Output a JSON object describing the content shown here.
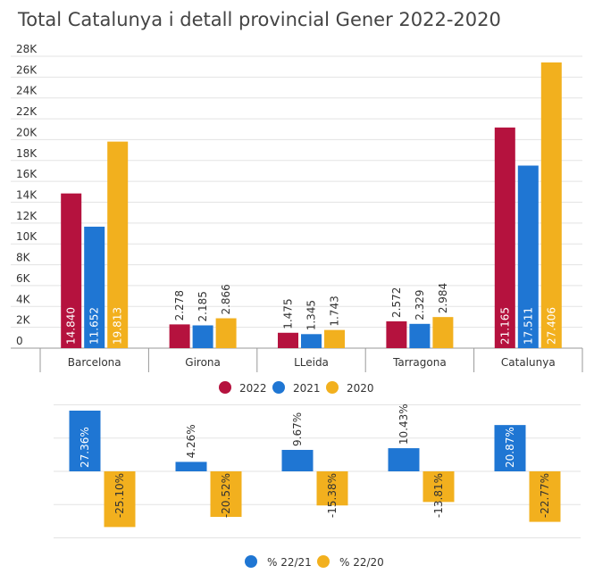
{
  "chart_data": [
    {
      "type": "bar",
      "title": "Total Catalunya i detall provincial Gener 2022-2020",
      "categories": [
        "Barcelona",
        "Girona",
        "LLeida",
        "Tarragona",
        "Catalunya"
      ],
      "series": [
        {
          "name": "2022",
          "color": "#b5123e",
          "values": [
            14840,
            2278,
            1475,
            2572,
            21165
          ],
          "labels": [
            "14.840",
            "2.278",
            "1.475",
            "2.572",
            "21.165"
          ]
        },
        {
          "name": "2021",
          "color": "#1f76d3",
          "values": [
            11652,
            2185,
            1345,
            2329,
            17511
          ],
          "labels": [
            "11.652",
            "2.185",
            "1.345",
            "2.329",
            "17.511"
          ]
        },
        {
          "name": "2020",
          "color": "#f2b01e",
          "values": [
            19813,
            2866,
            1743,
            2984,
            27406
          ],
          "labels": [
            "19.813",
            "2.866",
            "1.743",
            "2.984",
            "27.406"
          ]
        }
      ],
      "yticks": [
        "0",
        "2K",
        "4K",
        "6K",
        "8K",
        "10K",
        "12K",
        "14K",
        "16K",
        "18K",
        "20K",
        "22K",
        "24K",
        "26K",
        "28K"
      ],
      "ylim": [
        0,
        28000
      ],
      "grid": true,
      "legend": "bottom"
    },
    {
      "type": "bar",
      "categories": [
        "Barcelona",
        "Girona",
        "LLeida",
        "Tarragona",
        "Catalunya"
      ],
      "series": [
        {
          "name": "% 22/21",
          "color": "#1f76d3",
          "values": [
            27.36,
            4.26,
            9.67,
            10.43,
            20.87
          ],
          "labels": [
            "27.36%",
            "4.26%",
            "9.67%",
            "10.43%",
            "20.87%"
          ]
        },
        {
          "name": "% 22/20",
          "color": "#f2b01e",
          "values": [
            -25.1,
            -20.52,
            -15.38,
            -13.81,
            -22.77
          ],
          "labels": [
            "-25.10%",
            "-20.52%",
            "-15.38%",
            "-13.81%",
            "-22.77%"
          ]
        }
      ],
      "ylim": [
        -30,
        30
      ],
      "grid": true,
      "legend": "bottom"
    }
  ]
}
